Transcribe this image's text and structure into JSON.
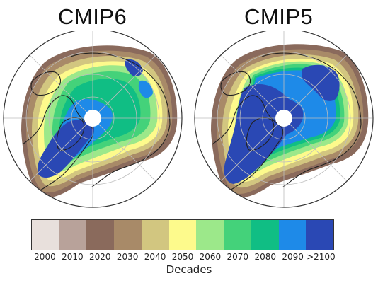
{
  "panels": [
    {
      "title": "CMIP6"
    },
    {
      "title": "CMIP5"
    }
  ],
  "colorbar": {
    "label": "Decades",
    "ticks": [
      "2000",
      "2010",
      "2020",
      "2030",
      "2040",
      "2050",
      "2060",
      "2070",
      "2080",
      "2090",
      ">2100"
    ],
    "colors": [
      "#e8e0dc",
      "#b8a29a",
      "#8a6a5c",
      "#a88a68",
      "#d2c680",
      "#fdfa8c",
      "#9ce88a",
      "#44d27a",
      "#10be84",
      "#1e8ae8",
      "#2a48b4"
    ]
  },
  "colors": {
    "ocean_outline": "#222222",
    "land_background": "#ffffff",
    "grid": "#bdbdbd",
    "pole_hole": "#ffffff"
  }
}
